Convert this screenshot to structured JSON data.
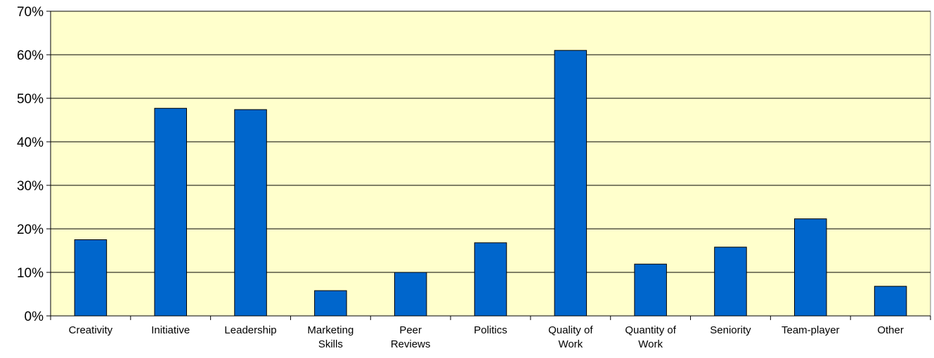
{
  "chart_data": {
    "type": "bar",
    "title": "",
    "xlabel": "",
    "ylabel": "",
    "categories": [
      [
        "Creativity"
      ],
      [
        "Initiative"
      ],
      [
        "Leadership"
      ],
      [
        "Marketing",
        "Skills"
      ],
      [
        "Peer",
        "Reviews"
      ],
      [
        "Politics"
      ],
      [
        "Quality of",
        "Work"
      ],
      [
        "Quantity of",
        "Work"
      ],
      [
        "Seniority"
      ],
      [
        "Team-player"
      ],
      [
        "Other"
      ]
    ],
    "values": [
      17.5,
      47.7,
      47.4,
      5.8,
      10.0,
      16.8,
      61.0,
      11.9,
      15.8,
      22.3,
      6.8
    ],
    "ylim": [
      0,
      70
    ],
    "yticks": [
      "0%",
      "10%",
      "20%",
      "30%",
      "40%",
      "50%",
      "60%",
      "70%"
    ],
    "grid": true,
    "legend": "none",
    "colors": {
      "plot_background": "#ffffcc",
      "bar_fill": "#0066cc",
      "bar_stroke": "#000000",
      "gridline": "#000000"
    }
  }
}
